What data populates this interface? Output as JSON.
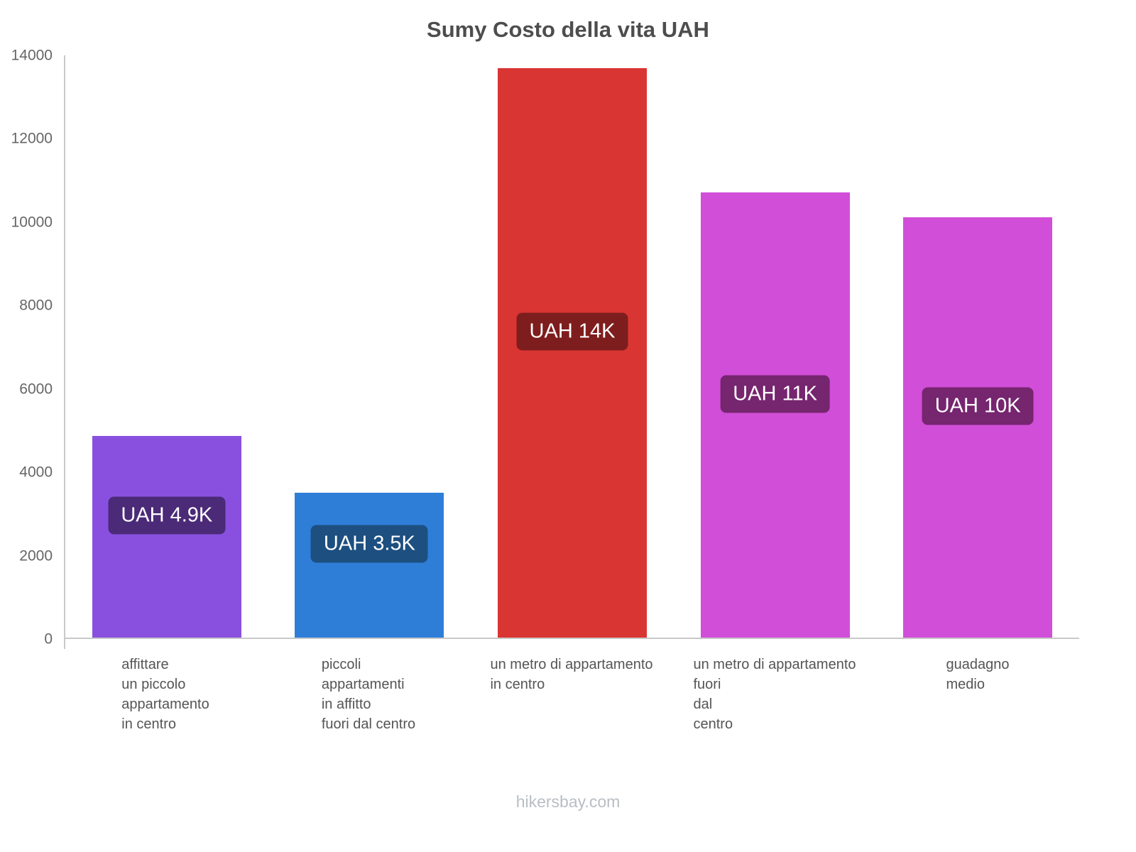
{
  "chart_data": {
    "type": "bar",
    "title": "Sumy Costo della vita UAH",
    "xlabel": "",
    "ylabel": "",
    "ylim": [
      0,
      14000
    ],
    "yticks": [
      0,
      2000,
      4000,
      6000,
      8000,
      10000,
      12000,
      14000
    ],
    "grid": false,
    "legend": false,
    "categories": [
      "affittare\nun piccolo\nappartamento\nin centro",
      "piccoli\nappartamenti\nin affitto\nfuori dal centro",
      "un metro di appartamento\nin centro",
      "un metro di appartamento\nfuori\ndal\ncentro",
      "guadagno\nmedio"
    ],
    "values": [
      4850,
      3480,
      13700,
      10700,
      10100
    ],
    "value_labels": [
      "UAH 4.9K",
      "UAH 3.5K",
      "UAH 14K",
      "UAH 11K",
      "UAH 10K"
    ],
    "bar_colors": [
      "#8950e0",
      "#2e7ed8",
      "#d93532",
      "#d14ed8",
      "#d14ed8"
    ],
    "badge_colors": [
      "#4b2a78",
      "#1d4f80",
      "#7e1d1d",
      "#76256f",
      "#76256f"
    ]
  },
  "footer": {
    "text": "hikersbay.com"
  }
}
